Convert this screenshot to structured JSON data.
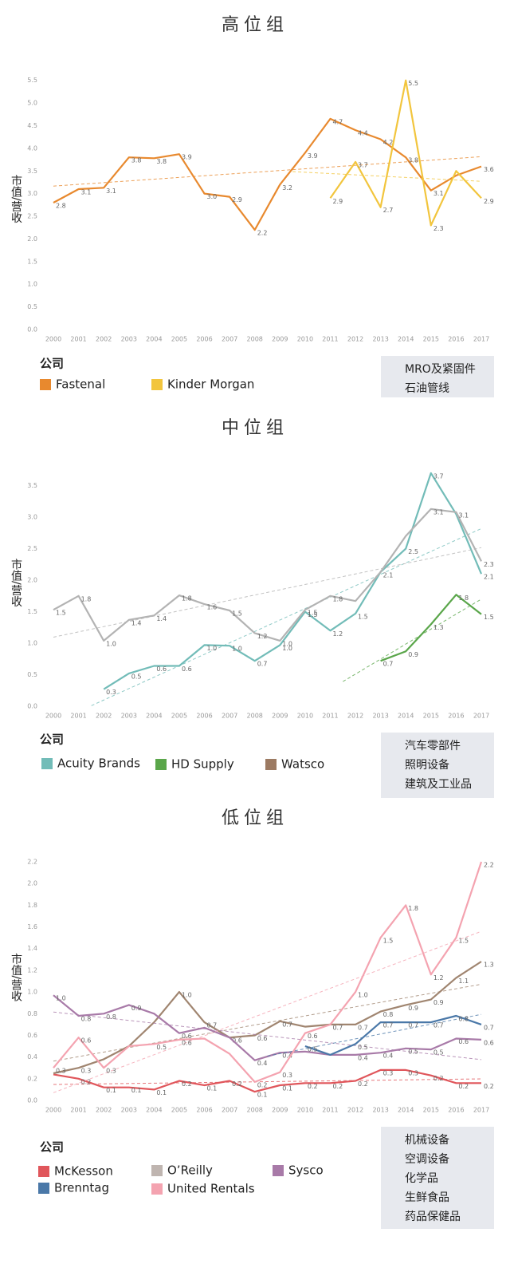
{
  "chart_data": [
    {
      "type": "line",
      "title": "高位组",
      "ylabel": "市值/营收",
      "legend_title": "公司",
      "notes": [
        "MRO及紧固件",
        "石油管线"
      ],
      "trendline": true,
      "x": [
        2000,
        2001,
        2002,
        2003,
        2004,
        2005,
        2006,
        2007,
        2008,
        2009,
        2010,
        2011,
        2012,
        2013,
        2014,
        2015,
        2016,
        2017
      ],
      "xlim": [
        2000,
        2017
      ],
      "xticks": [
        2000,
        2001,
        2002,
        2003,
        2004,
        2005,
        2006,
        2007,
        2008,
        2009,
        2010,
        2011,
        2012,
        2013,
        2014,
        2015,
        2016,
        2017
      ],
      "ylim": [
        0,
        5.6
      ],
      "yticks": [
        {
          "value": 0,
          "label": "0.0"
        },
        0.5,
        {
          "value": 1,
          "label": "1.0"
        },
        1.5,
        {
          "value": 2,
          "label": "2.0"
        },
        2.5,
        {
          "value": 3,
          "label": "3.0"
        },
        3.5,
        {
          "value": 4,
          "label": "4.0"
        },
        4.5,
        {
          "value": 5,
          "label": "5.0"
        },
        5.5
      ],
      "series": [
        {
          "name": "Fastenal",
          "color": "#e8892e",
          "values": [
            2.8,
            3.1,
            3.13,
            3.8,
            3.78,
            3.87,
            3.0,
            2.93,
            2.2,
            3.2,
            3.9,
            4.65,
            4.4,
            4.2,
            3.8,
            3.07,
            3.4,
            3.6
          ],
          "value_labels": [
            "2.8",
            "3.1",
            "3.1",
            "3.8",
            "3.8",
            "3.9",
            "3.0",
            "2.9",
            "2.2",
            "3.2",
            "3.9",
            "4.7",
            "4.4",
            "4.2",
            "3.8",
            "3.1",
            null,
            "3.6"
          ]
        },
        {
          "name": "Kinder Morgan",
          "color": "#f2c53d",
          "values": [
            null,
            null,
            null,
            null,
            null,
            null,
            null,
            null,
            null,
            null,
            null,
            2.9,
            3.7,
            2.7,
            5.5,
            2.3,
            3.5,
            2.9
          ],
          "value_labels": [
            null,
            null,
            null,
            null,
            null,
            null,
            null,
            null,
            null,
            null,
            null,
            "2.9",
            "3.7",
            "2.7",
            "5.5",
            "2.3",
            null,
            "2.9"
          ]
        }
      ]
    },
    {
      "type": "line",
      "title": "中位组",
      "ylabel": "市值/营收",
      "legend_title": "公司",
      "notes": [
        "汽车零部件",
        "照明设备",
        "建筑及工业品"
      ],
      "trendline": true,
      "x": [
        2000,
        2001,
        2002,
        2003,
        2004,
        2005,
        2006,
        2007,
        2008,
        2009,
        2010,
        2011,
        2012,
        2013,
        2014,
        2015,
        2016,
        2017
      ],
      "xlim": [
        2000,
        2017
      ],
      "xticks": [
        2000,
        2001,
        2002,
        2003,
        2004,
        2005,
        2006,
        2007,
        2008,
        2009,
        2010,
        2011,
        2012,
        2013,
        2014,
        2015,
        2016,
        2017
      ],
      "ylim": [
        0,
        3.8
      ],
      "yticks": [
        {
          "value": 0,
          "label": "0.0"
        },
        0.5,
        {
          "value": 1,
          "label": "1.0"
        },
        1.5,
        {
          "value": 2,
          "label": "2.0"
        },
        2.5,
        {
          "value": 3,
          "label": "3.0"
        },
        3.5
      ],
      "series": [
        {
          "name": "Acuity Brands",
          "color": "#72bcb8",
          "values": [
            null,
            null,
            0.27,
            0.52,
            0.64,
            0.64,
            0.97,
            0.96,
            0.72,
            0.97,
            1.5,
            1.2,
            1.47,
            2.13,
            2.5,
            3.7,
            3.05,
            2.1
          ],
          "value_labels": [
            null,
            null,
            "0.3",
            "0.5",
            "0.6",
            "0.6",
            "1.0",
            "1.0",
            "0.7",
            "1.0",
            "1.5",
            "1.2",
            "1.5",
            "2.1",
            "2.5",
            "3.7",
            null,
            "2.1"
          ]
        },
        {
          "name": "HD Supply",
          "color": "#5aa64a",
          "values": [
            null,
            null,
            null,
            null,
            null,
            null,
            null,
            null,
            null,
            null,
            null,
            null,
            null,
            0.72,
            0.87,
            1.3,
            1.77,
            1.46
          ],
          "value_labels": [
            null,
            null,
            null,
            null,
            null,
            null,
            null,
            null,
            null,
            null,
            null,
            null,
            null,
            "0.7",
            "0.9",
            "1.3",
            "1.8",
            "1.5"
          ]
        },
        {
          "name": "Watsco",
          "color": "#b3b3b3",
          "legend_color": "#9c7a62",
          "values": [
            1.53,
            1.75,
            1.04,
            1.37,
            1.44,
            1.76,
            1.62,
            1.52,
            1.16,
            1.04,
            1.53,
            1.75,
            1.67,
            2.13,
            2.7,
            3.13,
            3.08,
            2.3
          ],
          "value_labels": [
            "1.5",
            "1.8",
            "1.0",
            "1.4",
            "1.4",
            "1.8",
            "1.6",
            "1.5",
            "1.2",
            "1.0",
            "1.5",
            "1.8",
            null,
            null,
            null,
            "3.1",
            "3.1",
            "2.3"
          ]
        }
      ]
    },
    {
      "type": "line",
      "title": "低位组",
      "ylabel": "市值/营收",
      "legend_title": "公司",
      "notes": [
        "机械设备",
        "空调设备",
        "化学品",
        "生鲜食品",
        "药品保健品"
      ],
      "trendline": true,
      "x": [
        2000,
        2001,
        2002,
        2003,
        2004,
        2005,
        2006,
        2007,
        2008,
        2009,
        2010,
        2011,
        2012,
        2013,
        2014,
        2015,
        2016,
        2017
      ],
      "xlim": [
        2000,
        2017
      ],
      "xticks": [
        2000,
        2001,
        2002,
        2003,
        2004,
        2005,
        2006,
        2007,
        2008,
        2009,
        2010,
        2011,
        2012,
        2013,
        2014,
        2015,
        2016,
        2017
      ],
      "ylim": [
        0,
        2.2
      ],
      "yticks": [
        {
          "value": 0,
          "label": "0.0"
        },
        0.2,
        0.4,
        0.6,
        0.8,
        {
          "value": 1,
          "label": "1.0"
        },
        1.2,
        1.4,
        1.6,
        1.8,
        {
          "value": 2,
          "label": "2.0"
        },
        2.2
      ],
      "series": [
        {
          "name": "McKesson",
          "color": "#e0565b",
          "values": [
            0.24,
            0.2,
            0.12,
            0.12,
            0.1,
            0.18,
            0.14,
            0.18,
            0.08,
            0.14,
            0.16,
            0.16,
            0.18,
            0.28,
            0.28,
            0.23,
            0.16,
            0.16
          ],
          "value_labels": [
            null,
            "0.2",
            "0.1",
            "0.1",
            "0.1",
            "0.2",
            "0.1",
            "0.2",
            "0.1",
            "0.1",
            "0.2",
            "0.2",
            "0.2",
            "0.3",
            "0.3",
            "0.2",
            "0.2",
            "0.2"
          ]
        },
        {
          "name": "O’Reilly",
          "color": "#a08570",
          "legend_color": "#bfb5b0",
          "values": [
            0.25,
            0.3,
            0.38,
            0.5,
            0.72,
            1.0,
            0.72,
            0.58,
            0.6,
            0.73,
            0.68,
            0.7,
            0.7,
            0.82,
            0.88,
            0.93,
            1.13,
            1.28
          ],
          "value_labels": [
            null,
            "0.3",
            null,
            null,
            null,
            "1.0",
            "0.7",
            "0.6",
            "0.6",
            "0.7",
            null,
            "0.7",
            "0.7",
            "0.8",
            "0.9",
            "0.9",
            "1.1",
            "1.3"
          ]
        },
        {
          "name": "Sysco",
          "color": "#a87aa8",
          "values": [
            0.97,
            0.78,
            0.8,
            0.88,
            0.8,
            0.62,
            0.67,
            0.58,
            0.37,
            0.44,
            0.45,
            0.42,
            0.42,
            0.44,
            0.48,
            0.47,
            0.57,
            0.56
          ],
          "value_labels": [
            "1.0",
            "0.8",
            "0.8",
            "0.9",
            null,
            "0.6",
            null,
            null,
            "0.4",
            "0.4",
            null,
            null,
            "0.4",
            "0.4",
            "0.5",
            "0.5",
            "0.6",
            "0.6"
          ]
        },
        {
          "name": "Brenntag",
          "color": "#4a78a8",
          "values": [
            null,
            null,
            null,
            null,
            null,
            null,
            null,
            null,
            null,
            null,
            0.5,
            0.42,
            0.52,
            0.72,
            0.72,
            0.72,
            0.78,
            0.7
          ],
          "value_labels": [
            null,
            null,
            null,
            null,
            null,
            null,
            null,
            null,
            null,
            null,
            "0.5",
            null,
            "0.5",
            "0.7",
            "0.7",
            "0.7",
            "0.8",
            "0.7"
          ]
        },
        {
          "name": "United Rentals",
          "color": "#f4a3b0",
          "values": [
            0.3,
            0.58,
            0.3,
            0.5,
            0.52,
            0.56,
            0.57,
            0.43,
            0.17,
            0.26,
            0.62,
            0.7,
            1.0,
            1.5,
            1.8,
            1.16,
            1.5,
            2.2
          ],
          "value_labels": [
            "0.3",
            "0.6",
            "0.3",
            null,
            "0.5",
            "0.6",
            null,
            null,
            "0.2",
            "0.3",
            "0.6",
            null,
            "1.0",
            "1.5",
            "1.8",
            "1.2",
            "1.5",
            "2.2"
          ]
        }
      ]
    }
  ]
}
